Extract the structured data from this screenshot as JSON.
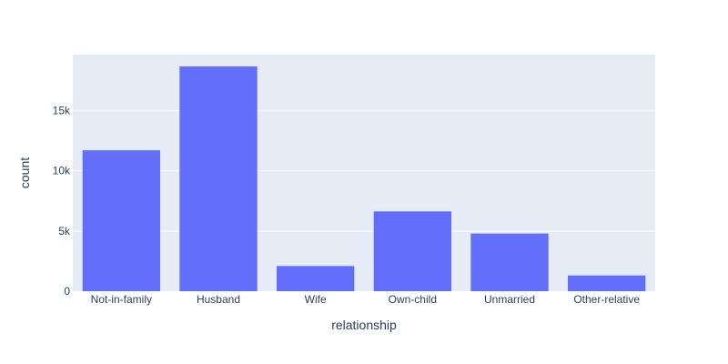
{
  "chart_data": {
    "type": "bar",
    "xlabel": "relationship",
    "ylabel": "count",
    "categories": [
      "Not-in-family",
      "Husband",
      "Wife",
      "Own-child",
      "Unmarried",
      "Other-relative"
    ],
    "values": [
      11702,
      18667,
      2091,
      6626,
      4788,
      1309
    ],
    "ylim": [
      0,
      19650
    ],
    "yticks": [
      0,
      5000,
      10000,
      15000
    ],
    "ytick_labels": [
      "0",
      "5k",
      "10k",
      "15k"
    ],
    "grid": true,
    "colors": {
      "bar": "#636efa",
      "plot_bg": "#e5ecf6",
      "grid": "#ffffff",
      "text": "#2a3f5f"
    }
  }
}
